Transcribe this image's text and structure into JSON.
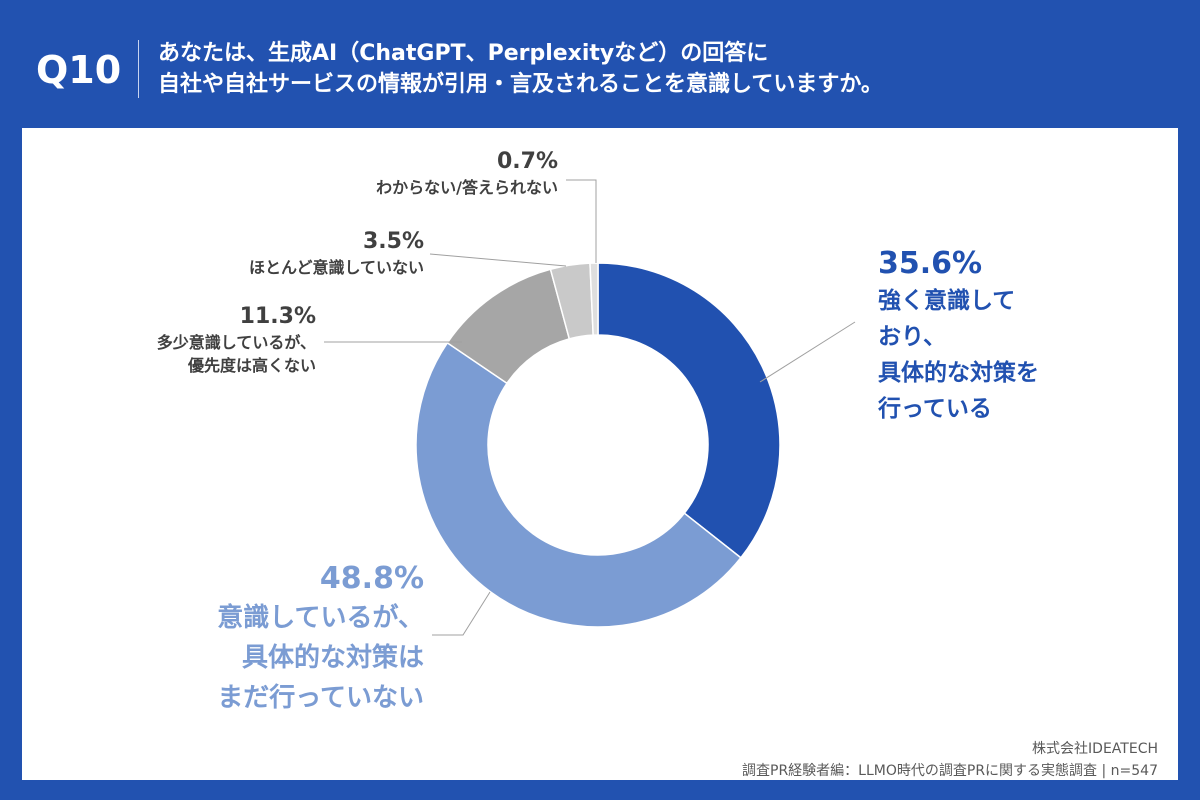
{
  "header": {
    "question_no": "Q10",
    "title_line1": "あなたは、生成AI（ChatGPT、Perplexityなど）の回答に",
    "title_line2": "自社や自社サービスの情報が引用・言及されることを意識していますか。"
  },
  "chart_data": {
    "type": "pie",
    "donut": true,
    "start": "top, clockwise",
    "slices": [
      {
        "label": "強く意識しており、具体的な対策を行っている",
        "label_lines": [
          "強く意識して",
          "おり、",
          "具体的な対策を",
          "行っている"
        ],
        "value": 35.6,
        "value_label": "35.6%",
        "color": "#2151b0"
      },
      {
        "label": "意識しているが、具体的な対策はまだ行っていない",
        "label_lines": [
          "意識しているが、",
          "具体的な対策は",
          "まだ行っていない"
        ],
        "value": 48.8,
        "value_label": "48.8%",
        "color": "#7b9cd3"
      },
      {
        "label": "多少意識しているが、優先度は高くない",
        "label_lines": [
          "多少意識しているが、",
          "優先度は高くない"
        ],
        "value": 11.3,
        "value_label": "11.3%",
        "color": "#a6a6a6"
      },
      {
        "label": "ほとんど意識していない",
        "label_lines": [
          "ほとんど意識していない"
        ],
        "value": 3.5,
        "value_label": "3.5%",
        "color": "#c9c9c9"
      },
      {
        "label": "わからない/答えられない",
        "label_lines": [
          "わからない/答えられない"
        ],
        "value": 0.7,
        "value_label": "0.7%",
        "color": "#dedede"
      }
    ]
  },
  "footer": {
    "company": "株式会社IDEATECH",
    "source": "調査PR経験者編：LLMO時代の調査PRに関する実態調査 | n=547"
  }
}
